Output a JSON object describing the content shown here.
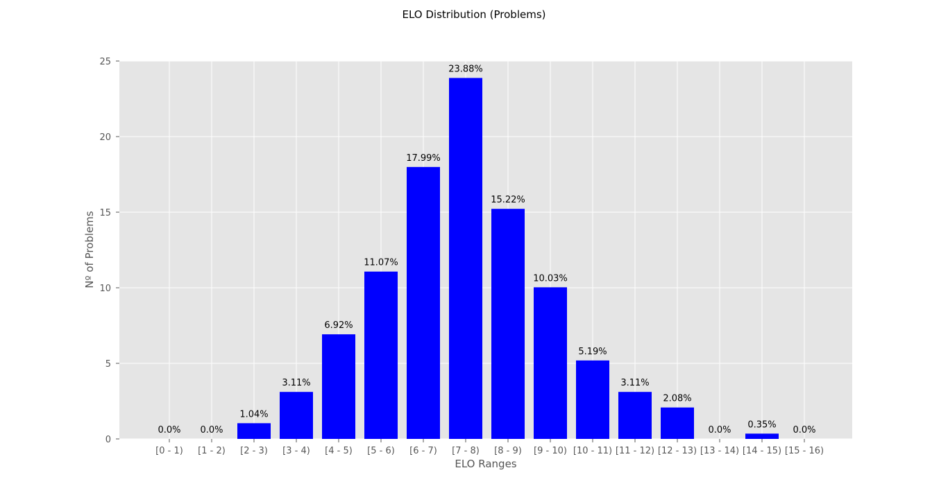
{
  "chart_data": {
    "type": "bar",
    "title": "ELO Distribution (Problems)",
    "xlabel": "ELO Ranges",
    "ylabel": "Nº of Problems",
    "categories": [
      "[0 - 1)",
      "[1 - 2)",
      "[2 - 3)",
      "[3 - 4)",
      "[4 - 5)",
      "[5 - 6)",
      "[6 - 7)",
      "[7 - 8)",
      "[8 - 9)",
      "[9 - 10)",
      "[10 - 11)",
      "[11 - 12)",
      "[12 - 13)",
      "[13 - 14)",
      "[14 - 15)",
      "[15 - 16)"
    ],
    "values": [
      0.0,
      0.0,
      1.04,
      3.11,
      6.92,
      11.07,
      17.99,
      23.88,
      15.22,
      10.03,
      5.19,
      3.11,
      2.08,
      0.0,
      0.35,
      0.0
    ],
    "data_labels": [
      "0.0%",
      "0.0%",
      "1.04%",
      "3.11%",
      "6.92%",
      "11.07%",
      "17.99%",
      "23.88%",
      "15.22%",
      "10.03%",
      "5.19%",
      "3.11%",
      "2.08%",
      "0.0%",
      "0.35%",
      "0.0%"
    ],
    "ylim": [
      0,
      25
    ],
    "yticks": [
      0,
      5,
      10,
      15,
      20,
      25
    ],
    "grid": true,
    "bar_color": "#0000ff",
    "background_color": "#e5e5e5"
  }
}
